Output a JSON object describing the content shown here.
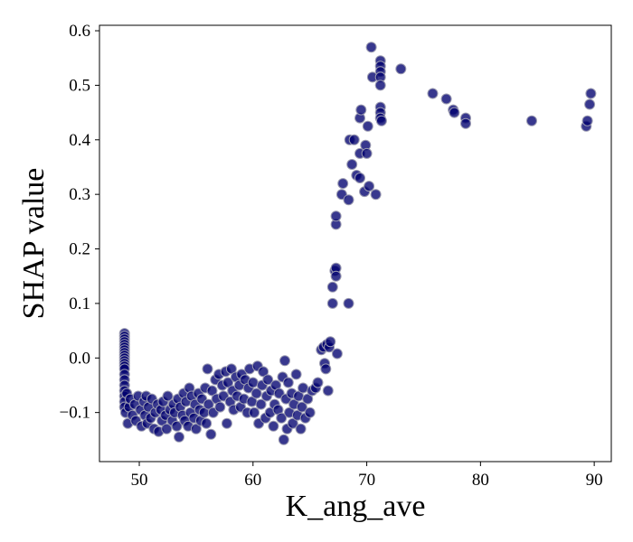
{
  "chart_data": {
    "type": "scatter",
    "title": "",
    "xlabel": "K_ang_ave",
    "ylabel": "SHAP value",
    "xlim": [
      46.5,
      91.5
    ],
    "ylim": [
      -0.19,
      0.61
    ],
    "xticks": [
      50,
      60,
      70,
      80,
      90
    ],
    "xtick_labels": [
      "50",
      "60",
      "70",
      "80",
      "90"
    ],
    "yticks": [
      -0.1,
      0.0,
      0.1,
      0.2,
      0.3,
      0.4,
      0.5,
      0.6
    ],
    "ytick_labels": [
      "−0.1",
      "0.0",
      "0.1",
      "0.2",
      "0.3",
      "0.4",
      "0.5",
      "0.6"
    ],
    "grid": false,
    "marker_color": "#00006e",
    "marker_edge_color": "#9a9ab0",
    "points": [
      [
        48.7,
        0.045
      ],
      [
        48.7,
        0.04
      ],
      [
        48.7,
        0.035
      ],
      [
        48.7,
        0.03
      ],
      [
        48.7,
        0.025
      ],
      [
        48.7,
        0.02
      ],
      [
        48.7,
        0.015
      ],
      [
        48.7,
        0.01
      ],
      [
        48.7,
        0.005
      ],
      [
        48.7,
        0.0
      ],
      [
        48.7,
        -0.005
      ],
      [
        48.7,
        -0.01
      ],
      [
        48.7,
        -0.015
      ],
      [
        48.7,
        -0.02
      ],
      [
        48.7,
        -0.03
      ],
      [
        48.7,
        -0.04
      ],
      [
        48.7,
        -0.05
      ],
      [
        48.7,
        -0.06
      ],
      [
        48.7,
        -0.07
      ],
      [
        48.7,
        -0.08
      ],
      [
        48.7,
        -0.09
      ],
      [
        48.8,
        -0.1
      ],
      [
        48.9,
        -0.065
      ],
      [
        49.0,
        -0.12
      ],
      [
        49.1,
        -0.09
      ],
      [
        49.2,
        -0.075
      ],
      [
        49.4,
        -0.105
      ],
      [
        49.6,
        -0.085
      ],
      [
        49.7,
        -0.115
      ],
      [
        49.9,
        -0.07
      ],
      [
        50.1,
        -0.095
      ],
      [
        50.2,
        -0.125
      ],
      [
        50.4,
        -0.08
      ],
      [
        50.5,
        -0.105
      ],
      [
        50.6,
        -0.07
      ],
      [
        50.7,
        -0.12
      ],
      [
        50.8,
        -0.09
      ],
      [
        51.0,
        -0.11
      ],
      [
        51.1,
        -0.075
      ],
      [
        51.3,
        -0.13
      ],
      [
        51.4,
        -0.1
      ],
      [
        51.6,
        -0.085
      ],
      [
        51.7,
        -0.135
      ],
      [
        51.9,
        -0.095
      ],
      [
        52.0,
        -0.115
      ],
      [
        52.1,
        -0.08
      ],
      [
        52.3,
        -0.105
      ],
      [
        52.4,
        -0.13
      ],
      [
        52.5,
        -0.07
      ],
      [
        52.7,
        -0.095
      ],
      [
        52.9,
        -0.115
      ],
      [
        53.0,
        -0.085
      ],
      [
        53.1,
        -0.1
      ],
      [
        53.3,
        -0.125
      ],
      [
        53.4,
        -0.075
      ],
      [
        53.5,
        -0.145
      ],
      [
        53.6,
        -0.09
      ],
      [
        53.8,
        -0.105
      ],
      [
        53.9,
        -0.065
      ],
      [
        54.0,
        -0.115
      ],
      [
        54.1,
        -0.08
      ],
      [
        54.3,
        -0.125
      ],
      [
        54.4,
        -0.055
      ],
      [
        54.5,
        -0.1
      ],
      [
        54.6,
        -0.07
      ],
      [
        54.8,
        -0.11
      ],
      [
        54.9,
        -0.085
      ],
      [
        55.0,
        -0.13
      ],
      [
        55.2,
        -0.065
      ],
      [
        55.3,
        -0.095
      ],
      [
        55.4,
        -0.115
      ],
      [
        55.5,
        -0.075
      ],
      [
        55.7,
        -0.1
      ],
      [
        55.8,
        -0.055
      ],
      [
        55.9,
        -0.12
      ],
      [
        56.0,
        -0.02
      ],
      [
        56.1,
        -0.085
      ],
      [
        56.3,
        -0.14
      ],
      [
        56.4,
        -0.06
      ],
      [
        56.5,
        -0.1
      ],
      [
        56.7,
        -0.04
      ],
      [
        56.8,
        -0.075
      ],
      [
        57.0,
        -0.03
      ],
      [
        57.1,
        -0.09
      ],
      [
        57.3,
        -0.05
      ],
      [
        57.4,
        -0.07
      ],
      [
        57.6,
        -0.025
      ],
      [
        57.7,
        -0.12
      ],
      [
        57.8,
        -0.045
      ],
      [
        58.0,
        -0.08
      ],
      [
        58.1,
        -0.02
      ],
      [
        58.2,
        -0.06
      ],
      [
        58.3,
        -0.095
      ],
      [
        58.5,
        -0.035
      ],
      [
        58.6,
        -0.07
      ],
      [
        58.8,
        -0.05
      ],
      [
        58.9,
        -0.09
      ],
      [
        59.0,
        -0.03
      ],
      [
        59.2,
        -0.075
      ],
      [
        59.3,
        -0.04
      ],
      [
        59.5,
        -0.1
      ],
      [
        59.6,
        -0.055
      ],
      [
        59.7,
        -0.02
      ],
      [
        59.9,
        -0.08
      ],
      [
        60.0,
        -0.045
      ],
      [
        60.1,
        -0.1
      ],
      [
        60.3,
        -0.065
      ],
      [
        60.4,
        -0.015
      ],
      [
        60.5,
        -0.12
      ],
      [
        60.7,
        -0.085
      ],
      [
        60.8,
        -0.05
      ],
      [
        60.9,
        -0.025
      ],
      [
        61.1,
        -0.11
      ],
      [
        61.2,
        -0.07
      ],
      [
        61.3,
        -0.04
      ],
      [
        61.5,
        -0.1
      ],
      [
        61.6,
        -0.06
      ],
      [
        61.8,
        -0.125
      ],
      [
        61.9,
        -0.085
      ],
      [
        62.0,
        -0.05
      ],
      [
        62.2,
        -0.095
      ],
      [
        62.3,
        -0.065
      ],
      [
        62.5,
        -0.11
      ],
      [
        62.6,
        -0.035
      ],
      [
        62.7,
        -0.15
      ],
      [
        62.8,
        -0.005
      ],
      [
        62.9,
        -0.075
      ],
      [
        63.0,
        -0.13
      ],
      [
        63.1,
        -0.045
      ],
      [
        63.2,
        -0.1
      ],
      [
        63.4,
        -0.065
      ],
      [
        63.5,
        -0.12
      ],
      [
        63.6,
        -0.085
      ],
      [
        63.8,
        -0.03
      ],
      [
        63.9,
        -0.105
      ],
      [
        64.0,
        -0.07
      ],
      [
        64.2,
        -0.13
      ],
      [
        64.3,
        -0.09
      ],
      [
        64.4,
        -0.055
      ],
      [
        64.6,
        -0.11
      ],
      [
        64.8,
        -0.075
      ],
      [
        65.0,
        -0.1
      ],
      [
        65.2,
        -0.06
      ],
      [
        65.5,
        -0.055
      ],
      [
        65.7,
        -0.045
      ],
      [
        66.0,
        0.015
      ],
      [
        66.2,
        0.02
      ],
      [
        66.3,
        -0.01
      ],
      [
        66.4,
        -0.02
      ],
      [
        66.5,
        0.025
      ],
      [
        66.6,
        -0.06
      ],
      [
        66.7,
        0.02
      ],
      [
        66.8,
        0.03
      ],
      [
        67.0,
        0.1
      ],
      [
        67.0,
        0.13
      ],
      [
        67.2,
        0.16
      ],
      [
        67.3,
        0.165
      ],
      [
        67.3,
        0.15
      ],
      [
        67.3,
        0.245
      ],
      [
        67.3,
        0.26
      ],
      [
        67.4,
        0.008
      ],
      [
        67.8,
        0.3
      ],
      [
        67.9,
        0.32
      ],
      [
        68.4,
        0.1
      ],
      [
        68.4,
        0.29
      ],
      [
        68.5,
        0.4
      ],
      [
        68.7,
        0.355
      ],
      [
        68.9,
        0.4
      ],
      [
        69.1,
        0.335
      ],
      [
        69.4,
        0.33
      ],
      [
        69.4,
        0.375
      ],
      [
        69.4,
        0.44
      ],
      [
        69.5,
        0.455
      ],
      [
        69.8,
        0.305
      ],
      [
        69.9,
        0.39
      ],
      [
        70.0,
        0.375
      ],
      [
        70.1,
        0.425
      ],
      [
        70.2,
        0.315
      ],
      [
        70.4,
        0.57
      ],
      [
        70.5,
        0.515
      ],
      [
        70.8,
        0.3
      ],
      [
        71.2,
        0.545
      ],
      [
        71.2,
        0.535
      ],
      [
        71.2,
        0.525
      ],
      [
        71.2,
        0.515
      ],
      [
        71.2,
        0.5
      ],
      [
        71.2,
        0.46
      ],
      [
        71.2,
        0.45
      ],
      [
        71.2,
        0.44
      ],
      [
        71.3,
        0.435
      ],
      [
        73.0,
        0.53
      ],
      [
        75.8,
        0.485
      ],
      [
        77.0,
        0.475
      ],
      [
        77.6,
        0.455
      ],
      [
        77.7,
        0.45
      ],
      [
        78.7,
        0.44
      ],
      [
        78.7,
        0.43
      ],
      [
        84.5,
        0.435
      ],
      [
        89.3,
        0.425
      ],
      [
        89.4,
        0.435
      ],
      [
        89.6,
        0.465
      ],
      [
        89.7,
        0.485
      ]
    ]
  }
}
